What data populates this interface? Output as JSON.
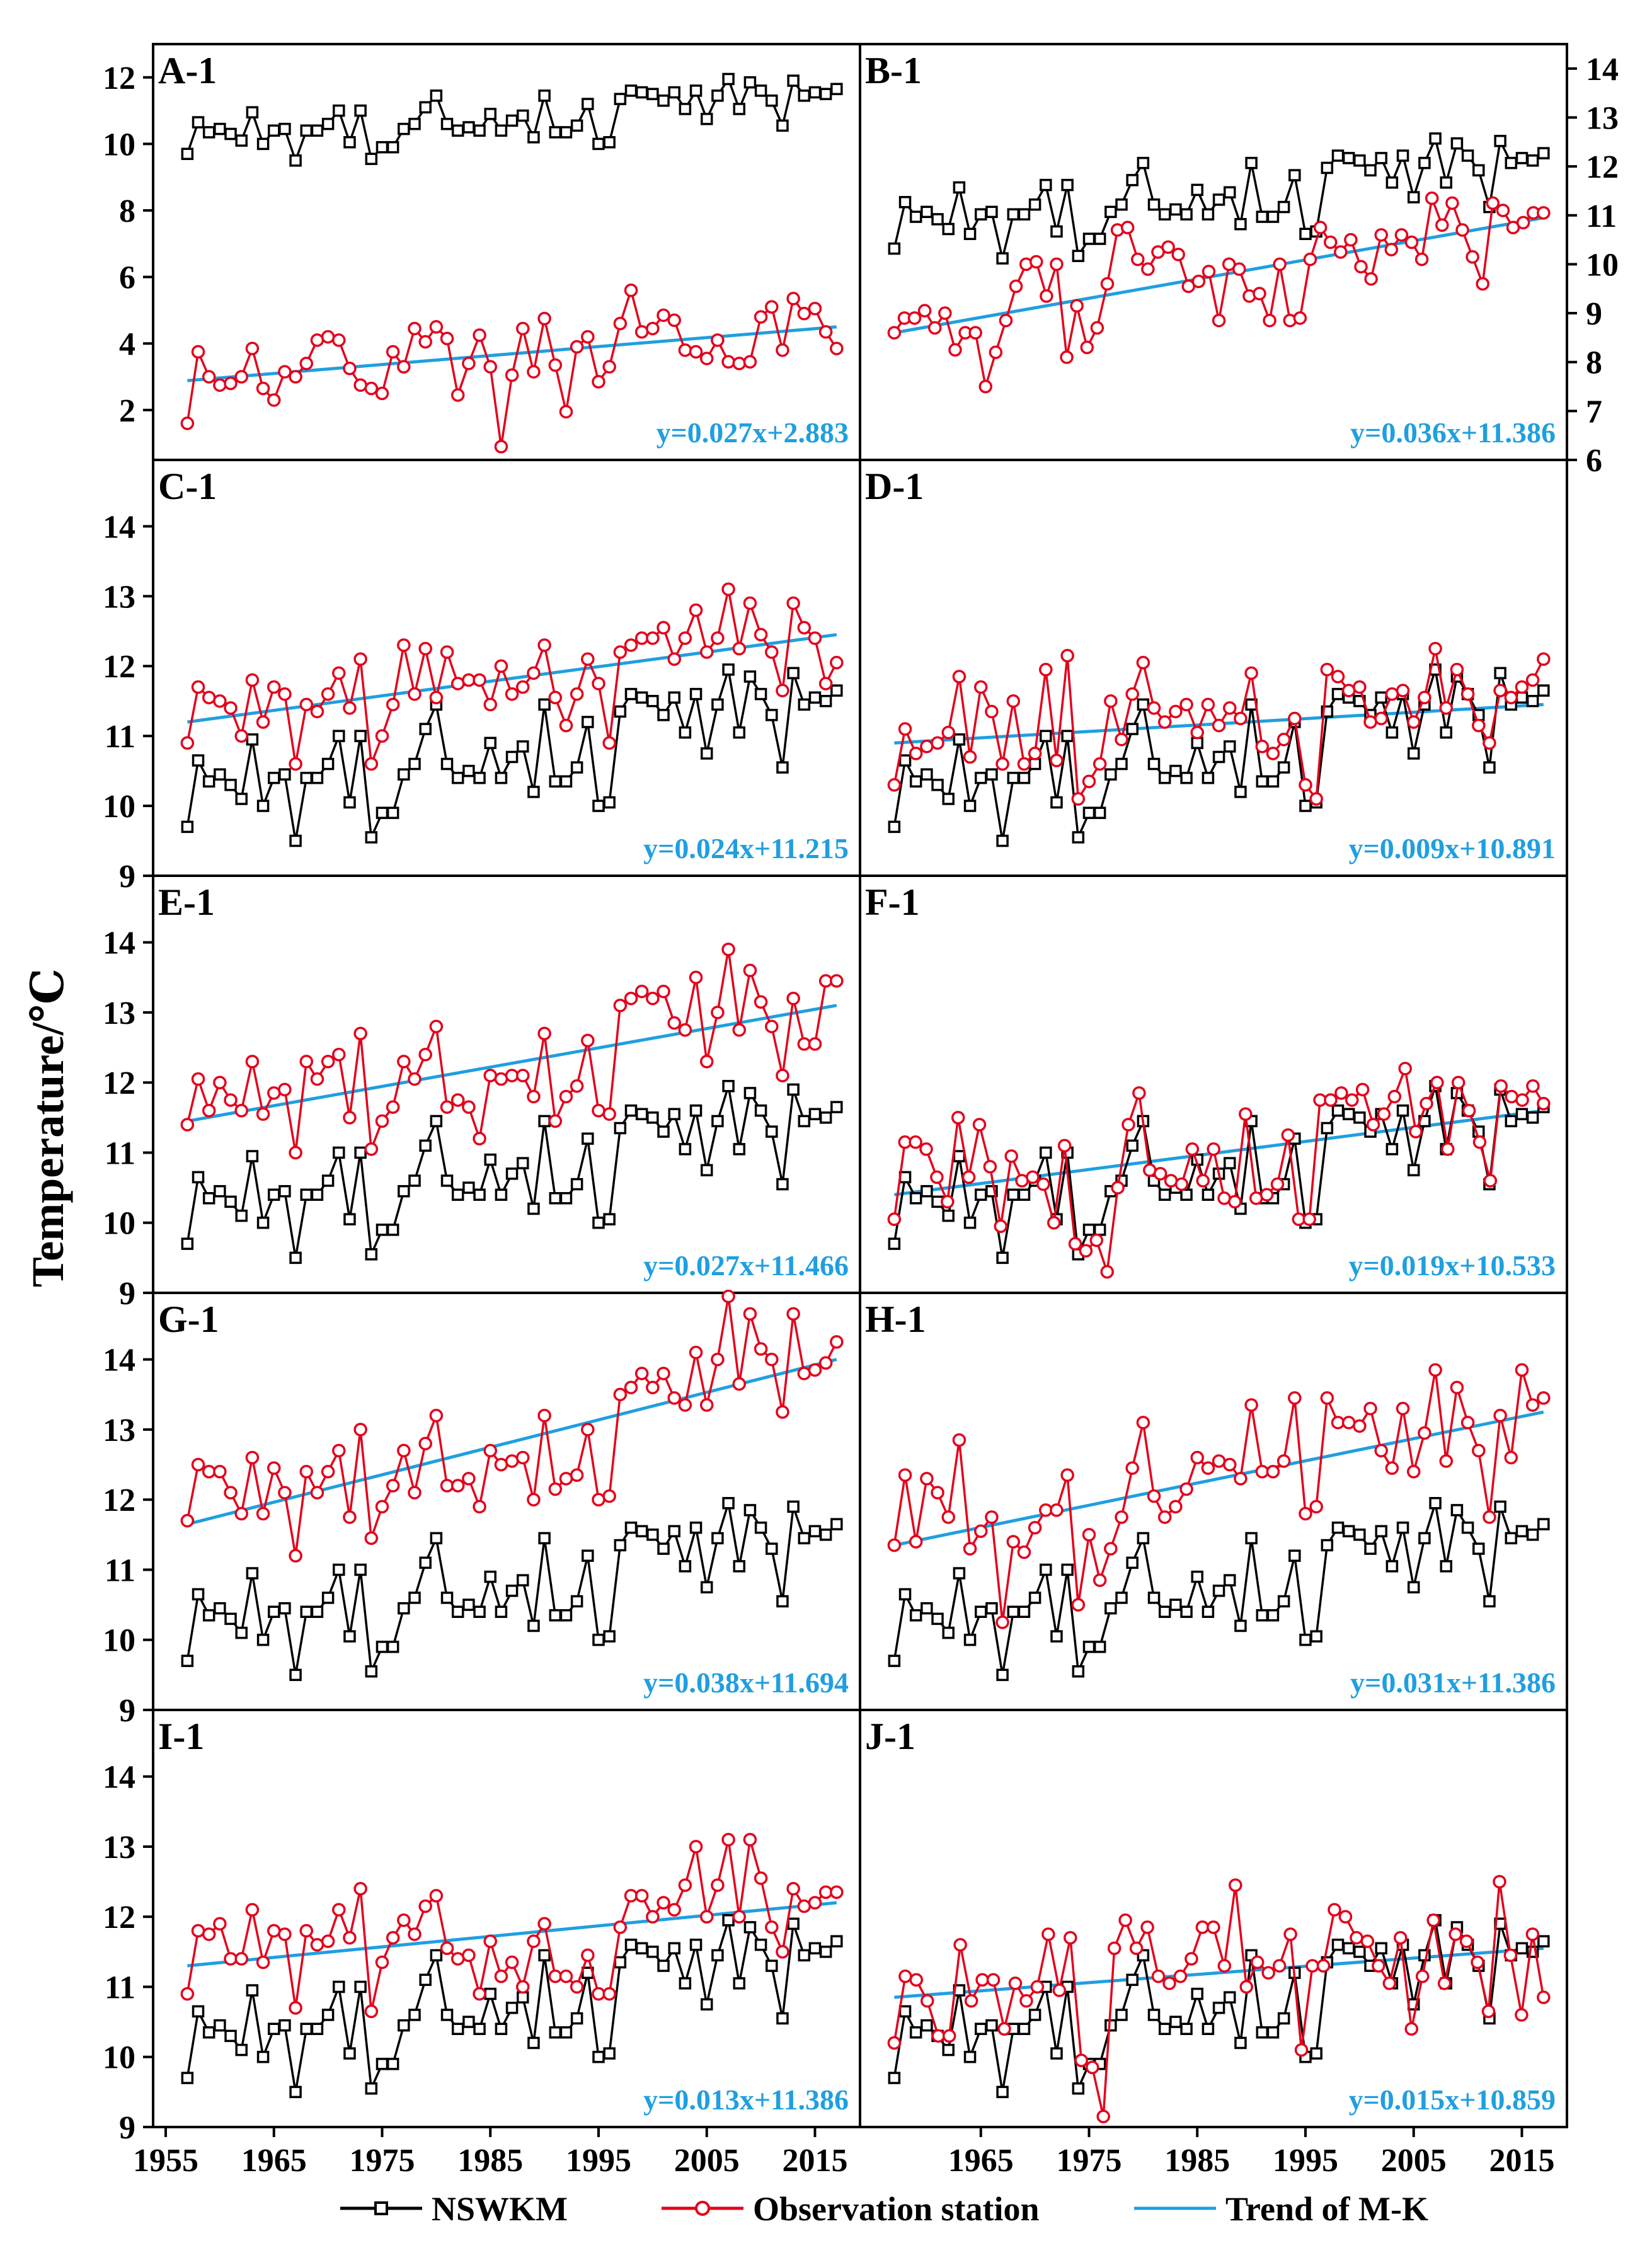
{
  "chart_data": {
    "type": "line",
    "ylabel": "Temperature/℃",
    "x_ticks": [
      "1955",
      "1965",
      "1975",
      "1985",
      "1995",
      "2005",
      "2015"
    ],
    "xlim": [
      1955,
      2018
    ],
    "legend": {
      "position": "bottom-center",
      "entries": [
        "NSWKM",
        "Observation station",
        "Trend of M-K"
      ]
    },
    "colors": {
      "nswkm": "#000000",
      "observation": "#e3001b",
      "trend": "#1f9fe0"
    },
    "years_start": 1957,
    "nswkm": [
      9.7,
      10.65,
      10.35,
      10.45,
      10.3,
      10.1,
      10.95,
      10.0,
      10.4,
      10.45,
      9.5,
      10.4,
      10.4,
      10.6,
      11.0,
      10.05,
      11.0,
      9.55,
      9.9,
      9.9,
      10.45,
      10.6,
      11.1,
      11.45,
      10.6,
      10.4,
      10.5,
      10.4,
      10.9,
      10.4,
      10.7,
      10.85,
      10.2,
      11.45,
      10.35,
      10.35,
      10.55,
      11.2,
      10.0,
      10.05,
      11.35,
      11.6,
      11.55,
      11.5,
      11.3,
      11.55,
      11.05,
      11.6,
      10.75,
      11.45,
      11.95,
      11.05,
      11.85,
      11.6,
      11.3,
      10.55,
      11.9,
      11.45,
      11.55,
      11.5,
      11.65
    ],
    "panels": [
      {
        "label": "A-1",
        "equation": "y=0.027x+2.883",
        "axis_side": "left",
        "ylim": [
          0.5,
          13
        ],
        "yticks": [
          2,
          4,
          6,
          8,
          10,
          12
        ],
        "trend": [
          2.883,
          4.5
        ],
        "observation": [
          1.6,
          3.75,
          3.0,
          2.75,
          2.8,
          3.0,
          3.85,
          2.65,
          2.3,
          3.15,
          3.0,
          3.4,
          4.1,
          4.2,
          4.1,
          3.25,
          2.75,
          2.65,
          2.5,
          3.75,
          3.3,
          4.45,
          4.05,
          4.5,
          4.15,
          2.45,
          3.4,
          4.25,
          3.3,
          0.9,
          3.05,
          4.45,
          3.15,
          4.75,
          3.35,
          1.95,
          3.9,
          4.2,
          2.85,
          3.3,
          4.6,
          5.6,
          4.35,
          4.45,
          4.85,
          4.7,
          3.8,
          3.75,
          3.55,
          4.1,
          3.45,
          3.4,
          3.45,
          4.8,
          5.1,
          3.8,
          5.35,
          4.9,
          5.05,
          4.35,
          3.85
        ],
        "black_on_right_scale": false
      },
      {
        "label": "B-1",
        "equation": "y=0.036x+11.386",
        "axis_side": "right",
        "ylim": [
          6,
          14.5
        ],
        "yticks": [
          6,
          7,
          8,
          9,
          10,
          11,
          12,
          13,
          14
        ],
        "trend": [
          8.6,
          10.95
        ],
        "observation": [
          8.6,
          8.9,
          8.9,
          9.05,
          8.7,
          9.0,
          8.25,
          8.6,
          8.6,
          7.5,
          8.2,
          8.85,
          9.55,
          10.0,
          10.05,
          9.35,
          10.0,
          8.1,
          9.15,
          8.3,
          8.7,
          9.6,
          10.7,
          10.75,
          10.1,
          9.9,
          10.25,
          10.35,
          10.2,
          9.55,
          9.65,
          9.85,
          8.85,
          10.0,
          9.9,
          9.35,
          9.4,
          8.85,
          10.0,
          8.85,
          8.9,
          10.1,
          10.75,
          10.45,
          10.25,
          10.5,
          9.95,
          9.7,
          10.6,
          10.3,
          10.6,
          10.45,
          10.1,
          11.35,
          10.8,
          11.25,
          10.7,
          10.15,
          9.6,
          11.25,
          11.1,
          10.75,
          10.85,
          11.05,
          11.05
        ],
        "black_on_right_scale": true
      },
      {
        "label": "C-1",
        "equation": "y=0.024x+11.215",
        "axis_side": "left",
        "ylim": [
          9,
          14.95
        ],
        "yticks": [
          9,
          10,
          11,
          12,
          13,
          14
        ],
        "trend": [
          11.2,
          12.45
        ],
        "observation": [
          10.9,
          11.7,
          11.55,
          11.5,
          11.4,
          11.0,
          11.8,
          11.2,
          11.7,
          11.6,
          10.6,
          11.45,
          11.35,
          11.6,
          11.9,
          11.4,
          12.1,
          10.6,
          11.0,
          11.45,
          12.3,
          11.6,
          12.25,
          11.55,
          12.2,
          11.75,
          11.8,
          11.8,
          11.45,
          12.0,
          11.6,
          11.7,
          11.9,
          12.3,
          11.55,
          11.15,
          11.6,
          12.1,
          11.75,
          10.9,
          12.2,
          12.3,
          12.4,
          12.4,
          12.55,
          12.1,
          12.4,
          12.8,
          12.2,
          12.4,
          13.1,
          12.25,
          12.9,
          12.45,
          12.2,
          11.65,
          12.9,
          12.55,
          12.4,
          11.75,
          12.05
        ],
        "black_on_right_scale": false
      },
      {
        "label": "D-1",
        "equation": "y=0.009x+10.891",
        "axis_side": "none",
        "ylim": [
          9,
          14.95
        ],
        "yticks": [],
        "trend": [
          10.9,
          11.45
        ],
        "observation": [
          10.3,
          11.1,
          10.75,
          10.85,
          10.9,
          11.05,
          11.85,
          10.7,
          11.7,
          11.35,
          10.6,
          11.5,
          10.6,
          10.75,
          11.95,
          10.65,
          12.15,
          10.1,
          10.35,
          10.6,
          11.5,
          10.95,
          11.6,
          12.05,
          11.4,
          11.2,
          11.35,
          11.45,
          11.05,
          11.45,
          11.15,
          11.4,
          11.25,
          11.9,
          10.85,
          10.75,
          10.95,
          11.25,
          10.3,
          10.1,
          11.95,
          11.85,
          11.65,
          11.7,
          11.2,
          11.25,
          11.6,
          11.65,
          11.2,
          11.55,
          12.25,
          11.4,
          11.95,
          11.6,
          11.15,
          10.9,
          11.65,
          11.55,
          11.7,
          11.8,
          12.1
        ],
        "black_on_right_scale": false
      },
      {
        "label": "E-1",
        "equation": "y=0.027x+11.466",
        "axis_side": "left",
        "ylim": [
          9,
          14.95
        ],
        "yticks": [
          9,
          10,
          11,
          12,
          13,
          14
        ],
        "trend": [
          11.45,
          13.1
        ],
        "observation": [
          11.4,
          12.05,
          11.6,
          12.0,
          11.75,
          11.6,
          12.3,
          11.55,
          11.85,
          11.9,
          11.0,
          12.3,
          12.05,
          12.3,
          12.4,
          11.5,
          12.7,
          11.05,
          11.45,
          11.65,
          12.3,
          12.05,
          12.4,
          12.8,
          11.65,
          11.75,
          11.65,
          11.2,
          12.1,
          12.05,
          12.1,
          12.1,
          11.8,
          12.7,
          11.45,
          11.8,
          11.95,
          12.6,
          11.6,
          11.55,
          13.1,
          13.2,
          13.3,
          13.2,
          13.3,
          12.85,
          12.75,
          13.5,
          12.3,
          13.0,
          13.9,
          12.75,
          13.6,
          13.15,
          12.8,
          12.1,
          13.2,
          12.55,
          12.55,
          13.45,
          13.45
        ],
        "black_on_right_scale": false
      },
      {
        "label": "F-1",
        "equation": "y=0.019x+10.533",
        "axis_side": "none",
        "ylim": [
          9,
          14.95
        ],
        "yticks": [],
        "trend": [
          10.4,
          11.6
        ],
        "observation": [
          10.05,
          11.15,
          11.15,
          11.05,
          10.65,
          10.3,
          11.5,
          10.65,
          11.4,
          10.8,
          9.95,
          10.95,
          10.6,
          10.65,
          10.55,
          10.0,
          11.1,
          9.7,
          9.6,
          9.75,
          9.3,
          10.5,
          11.4,
          11.85,
          10.75,
          10.7,
          10.6,
          10.55,
          11.05,
          10.6,
          11.05,
          10.35,
          10.3,
          11.55,
          10.35,
          10.4,
          10.55,
          11.25,
          10.05,
          10.05,
          11.75,
          11.75,
          11.85,
          11.75,
          11.9,
          11.4,
          11.55,
          11.8,
          12.2,
          11.3,
          11.7,
          12.0,
          11.05,
          12.0,
          11.6,
          11.15,
          10.6,
          11.95,
          11.8,
          11.75,
          11.95,
          11.7
        ],
        "black_on_right_scale": false
      },
      {
        "label": "G-1",
        "equation": "y=0.038x+11.694",
        "axis_side": "left",
        "ylim": [
          9,
          14.95
        ],
        "yticks": [
          9,
          10,
          11,
          12,
          13,
          14
        ],
        "trend": [
          11.65,
          14.0
        ],
        "observation": [
          11.7,
          12.5,
          12.4,
          12.4,
          12.1,
          11.8,
          12.6,
          11.8,
          12.45,
          12.1,
          11.2,
          12.4,
          12.1,
          12.4,
          12.7,
          11.75,
          13.0,
          11.45,
          11.9,
          12.2,
          12.7,
          12.1,
          12.8,
          13.2,
          12.2,
          12.2,
          12.3,
          11.9,
          12.7,
          12.5,
          12.55,
          12.6,
          12.0,
          13.2,
          12.15,
          12.3,
          12.35,
          13.0,
          12.0,
          12.05,
          13.5,
          13.6,
          13.8,
          13.6,
          13.8,
          13.45,
          13.35,
          14.1,
          13.35,
          14.0,
          14.9,
          13.65,
          14.65,
          14.15,
          14.0,
          13.25,
          14.65,
          13.8,
          13.85,
          13.95,
          14.25
        ],
        "black_on_right_scale": false
      },
      {
        "label": "H-1",
        "equation": "y=0.031x+11.386",
        "axis_side": "none",
        "ylim": [
          9,
          14.95
        ],
        "yticks": [],
        "trend": [
          11.35,
          13.25
        ],
        "observation": [
          11.35,
          12.35,
          11.4,
          12.3,
          12.1,
          11.75,
          12.85,
          11.3,
          11.55,
          11.75,
          10.25,
          11.4,
          11.25,
          11.6,
          11.85,
          11.85,
          12.35,
          10.5,
          11.5,
          10.85,
          11.3,
          11.75,
          12.45,
          13.1,
          12.05,
          11.75,
          11.9,
          12.15,
          12.6,
          12.45,
          12.55,
          12.5,
          12.3,
          13.35,
          12.4,
          12.4,
          12.55,
          13.45,
          11.8,
          11.9,
          13.45,
          13.1,
          13.1,
          13.05,
          13.3,
          12.7,
          12.45,
          13.3,
          12.4,
          12.95,
          13.85,
          12.55,
          13.6,
          13.1,
          12.7,
          11.75,
          13.2,
          12.6,
          13.85,
          13.35,
          13.45
        ],
        "black_on_right_scale": false
      },
      {
        "label": "I-1",
        "equation": "y=0.013x+11.386",
        "axis_side": "left",
        "ylim": [
          9,
          14.95
        ],
        "yticks": [
          9,
          10,
          11,
          12,
          13,
          14
        ],
        "trend": [
          11.3,
          12.2
        ],
        "observation": [
          10.9,
          11.8,
          11.75,
          11.9,
          11.4,
          11.4,
          12.1,
          11.35,
          11.8,
          11.75,
          10.7,
          11.8,
          11.6,
          11.65,
          12.1,
          11.7,
          12.4,
          10.65,
          11.35,
          11.7,
          11.95,
          11.75,
          12.15,
          12.3,
          11.55,
          11.4,
          11.45,
          10.9,
          11.65,
          11.15,
          11.35,
          11.0,
          11.65,
          11.9,
          11.15,
          11.15,
          11.0,
          11.45,
          10.9,
          10.9,
          11.85,
          12.3,
          12.3,
          12.0,
          12.2,
          12.1,
          12.45,
          13.0,
          12.0,
          12.45,
          13.1,
          12.0,
          13.1,
          12.55,
          11.85,
          11.5,
          12.4,
          12.15,
          12.2,
          12.35,
          12.35
        ],
        "black_on_right_scale": false
      },
      {
        "label": "J-1",
        "equation": "y=0.015x+10.859",
        "axis_side": "none",
        "ylim": [
          9,
          14.95
        ],
        "yticks": [],
        "trend": [
          10.85,
          11.55
        ],
        "observation": [
          10.2,
          11.15,
          11.1,
          10.8,
          10.3,
          10.3,
          11.6,
          10.8,
          11.1,
          11.1,
          10.4,
          11.05,
          10.8,
          11.0,
          11.75,
          10.95,
          11.7,
          9.95,
          9.85,
          9.15,
          11.55,
          11.95,
          11.55,
          11.85,
          11.15,
          11.05,
          11.15,
          11.4,
          11.85,
          11.85,
          11.3,
          12.45,
          11.0,
          11.35,
          11.2,
          11.3,
          11.75,
          10.1,
          11.3,
          11.3,
          12.1,
          12.0,
          11.7,
          11.65,
          11.3,
          11.05,
          11.7,
          10.4,
          11.15,
          11.95,
          11.05,
          11.75,
          11.65,
          11.35,
          10.65,
          12.5,
          11.45,
          10.6,
          11.75,
          10.85
        ],
        "black_on_right_scale": false
      }
    ]
  }
}
